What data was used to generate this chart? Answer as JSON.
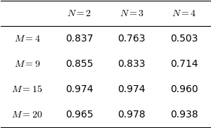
{
  "col_headers": [
    "$N{=}2$",
    "$N{=}3$",
    "$N{=}4$"
  ],
  "row_headers": [
    "$M{=}4$",
    "$M{=}9$",
    "$M{=}15$",
    "$M{=}20$"
  ],
  "values": [
    [
      "0.837",
      "0.763",
      "0.503"
    ],
    [
      "0.855",
      "0.833",
      "0.714"
    ],
    [
      "0.974",
      "0.974",
      "0.960"
    ],
    [
      "0.965",
      "0.978",
      "0.938"
    ]
  ],
  "background_color": "#ffffff",
  "text_color": "#000000",
  "fontsize": 10
}
